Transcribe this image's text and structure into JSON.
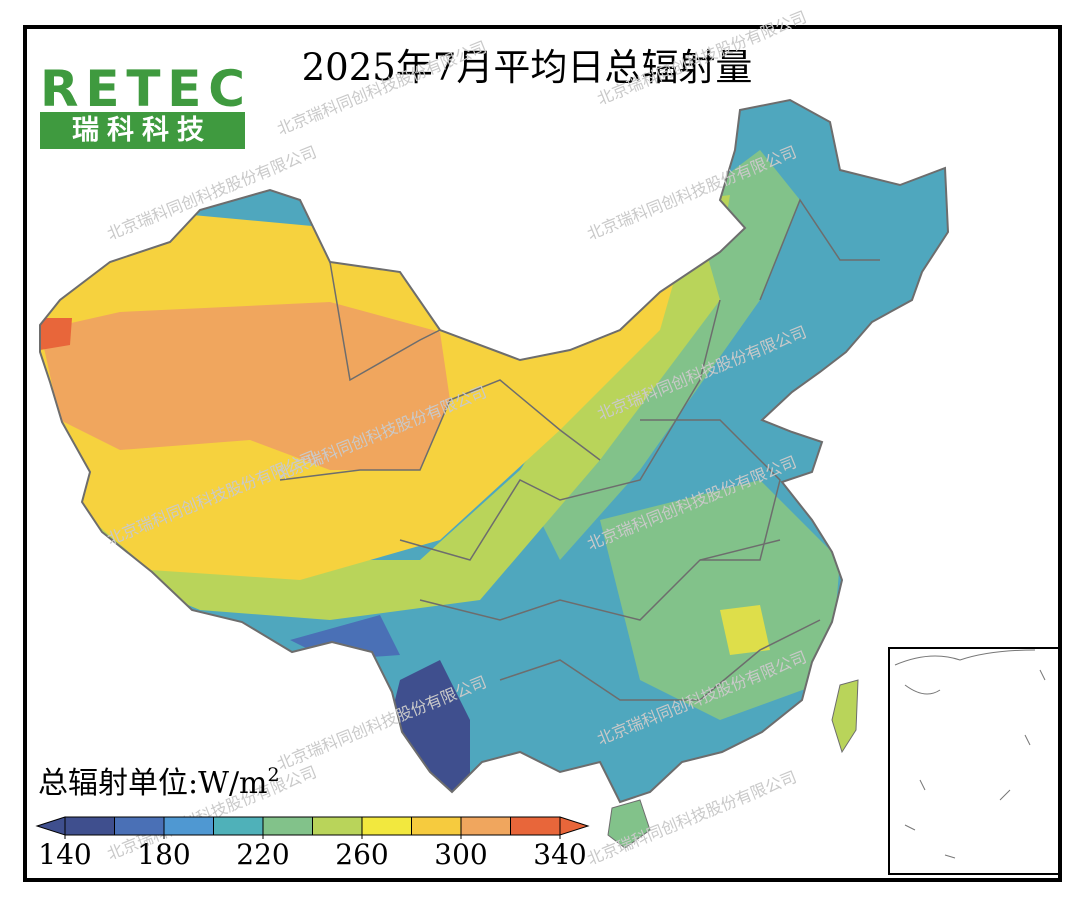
{
  "title": "2025年7月平均日总辐射量",
  "logo": {
    "brand": "RETEC",
    "name": "瑞科科技"
  },
  "watermark": "北京瑞科同创科技股份有限公司",
  "legend": {
    "label": "总辐射单位:W/m",
    "superscript": "2",
    "lim": [
      140,
      340
    ],
    "ticks": [
      140,
      180,
      220,
      260,
      300,
      340
    ],
    "colors": [
      "#3f4f8e",
      "#4a70b6",
      "#4f98d2",
      "#4fb1b9",
      "#82c28a",
      "#b9d45a",
      "#f2e83e",
      "#f6cb3e",
      "#f0a65e",
      "#e8663a"
    ]
  }
}
